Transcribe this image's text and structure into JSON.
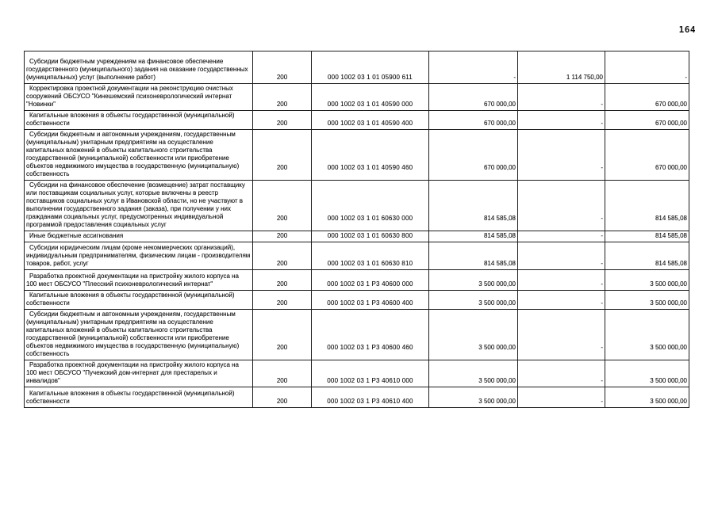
{
  "page_number": "164",
  "table": {
    "rows": [
      {
        "description": "Субсидии бюджетным учреждениям на финансовое обеспечение государственного (муниципального) задания на оказание государственных (муниципальных) услуг (выполнение работ)",
        "measure": "200",
        "code": "000 1002 03 1 01 05900 611",
        "amount1": "-",
        "amount2": "1 114 750,00",
        "amount3": "-"
      },
      {
        "description": "Корректировка проектной документации на реконструкцию очистных сооружений ОБСУСО \"Кинешемский психоневрологический интернат \"Новинки\"",
        "measure": "200",
        "code": "000 1002 03 1 01 40590 000",
        "amount1": "670 000,00",
        "amount2": "-",
        "amount3": "670 000,00"
      },
      {
        "description": "Капитальные вложения в объекты государственной (муниципальной) собственности",
        "measure": "200",
        "code": "000 1002 03 1 01 40590 400",
        "amount1": "670 000,00",
        "amount2": "-",
        "amount3": "670 000,00"
      },
      {
        "description": "Субсидии бюджетным и автономным учреждениям, государственным (муниципальным) унитарным предприятиям на осуществление капитальных вложений в объекты капитального строительства государственной (муниципальной) собственности или приобретение объектов недвижимого имущества в государственную (муниципальную) собственность",
        "measure": "200",
        "code": "000 1002 03 1 01 40590 460",
        "amount1": "670 000,00",
        "amount2": "-",
        "amount3": "670 000,00"
      },
      {
        "description": "Субсидии на финансовое обеспечение (возмещение) затрат поставщику или поставщикам социальных услуг, которые включены в реестр поставщиков социальных услуг в Ивановской области, но не участвуют в выполнении государственного задания (заказа), при получении у них гражданами социальных услуг, предусмотренных индивидуальной программой предоставления социальных услуг",
        "measure": "200",
        "code": "000 1002 03 1 01 60630 000",
        "amount1": "814 585,08",
        "amount2": "-",
        "amount3": "814 585,08"
      },
      {
        "description": "Иные бюджетные ассигнования",
        "measure": "200",
        "code": "000 1002 03 1 01 60630 800",
        "amount1": "814 585,08",
        "amount2": "-",
        "amount3": "814 585,08"
      },
      {
        "description": "Субсидии юридическим лицам (кроме некоммерческих организаций), индивидуальным предпринимателям, физическим лицам - производителям товаров, работ, услуг",
        "measure": "200",
        "code": "000 1002 03 1 01 60630 810",
        "amount1": "814 585,08",
        "amount2": "-",
        "amount3": "814 585,08"
      },
      {
        "description": "Разработка проектной документации на пристройку жилого корпуса на 100 мест ОБСУСО \"Плесский психоневрологический интернат\"",
        "measure": "200",
        "code": "000 1002 03 1 Р3 40600 000",
        "amount1": "3 500 000,00",
        "amount2": "-",
        "amount3": "3 500 000,00"
      },
      {
        "description": "Капитальные вложения в объекты государственной (муниципальной) собственности",
        "measure": "200",
        "code": "000 1002 03 1 Р3 40600 400",
        "amount1": "3 500 000,00",
        "amount2": "-",
        "amount3": "3 500 000,00"
      },
      {
        "description": "Субсидии бюджетным и автономным учреждениям, государственным (муниципальным) унитарным предприятиям на осуществление капитальных вложений в объекты капитального строительства государственной (муниципальной) собственности или приобретение объектов недвижимого имущества в государственную (муниципальную) собственность",
        "measure": "200",
        "code": "000 1002 03 1 Р3 40600 460",
        "amount1": "3 500 000,00",
        "amount2": "-",
        "amount3": "3 500 000,00"
      },
      {
        "description": "Разработка проектной документации на пристройку жилого корпуса на 100 мест ОБСУСО \"Пучежский дом-интернат для престарелых и инвалидов\"",
        "measure": "200",
        "code": "000 1002 03 1 Р3 40610 000",
        "amount1": "3 500 000,00",
        "amount2": "-",
        "amount3": "3 500 000,00"
      },
      {
        "description": "Капитальные вложения в объекты государственной (муниципальной) собственности",
        "measure": "200",
        "code": "000 1002 03 1 Р3 40610 400",
        "amount1": "3 500 000,00",
        "amount2": "-",
        "amount3": "3 500 000,00"
      }
    ]
  }
}
